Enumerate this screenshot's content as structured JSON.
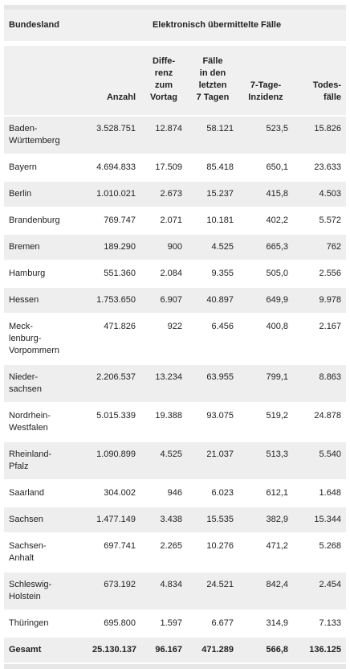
{
  "header": {
    "first_column": "Bundesland",
    "group": "Elektronisch übermittelte Fälle"
  },
  "columns": [
    "Anzahl",
    "Diffe-\nrenz\nzum\nVortag",
    "Fälle\nin den\nletzten\n7 Tagen",
    "7-Tage-\nInzidenz",
    "Todes-\nfälle"
  ],
  "rows": [
    [
      "Baden-\nWürttemberg",
      "3.528.751",
      "12.874",
      "58.121",
      "523,5",
      "15.826"
    ],
    [
      "Bayern",
      "4.694.833",
      "17.509",
      "85.418",
      "650,1",
      "23.633"
    ],
    [
      "Berlin",
      "1.010.021",
      "2.673",
      "15.237",
      "415,8",
      "4.503"
    ],
    [
      "Brandenburg",
      "769.747",
      "2.071",
      "10.181",
      "402,2",
      "5.572"
    ],
    [
      "Bremen",
      "189.290",
      "900",
      "4.525",
      "665,3",
      "762"
    ],
    [
      "Hamburg",
      "551.360",
      "2.084",
      "9.355",
      "505,0",
      "2.556"
    ],
    [
      "Hessen",
      "1.753.650",
      "6.907",
      "40.897",
      "649,9",
      "9.978"
    ],
    [
      "Meck-\nlenburg-\nVorpommern",
      "471.826",
      "922",
      "6.456",
      "400,8",
      "2.167"
    ],
    [
      "Nieder-\nsachsen",
      "2.206.537",
      "13.234",
      "63.955",
      "799,1",
      "8.863"
    ],
    [
      "Nordrhein-\nWestfalen",
      "5.015.339",
      "19.388",
      "93.075",
      "519,2",
      "24.878"
    ],
    [
      "Rheinland-\nPfalz",
      "1.090.899",
      "4.525",
      "21.037",
      "513,3",
      "5.540"
    ],
    [
      "Saarland",
      "304.002",
      "946",
      "6.023",
      "612,1",
      "1.648"
    ],
    [
      "Sachsen",
      "1.477.149",
      "3.438",
      "15.535",
      "382,9",
      "15.344"
    ],
    [
      "Sachsen-\nAnhalt",
      "697.741",
      "2.265",
      "10.276",
      "471,2",
      "5.268"
    ],
    [
      "Schleswig-\nHolstein",
      "673.192",
      "4.834",
      "24.521",
      "842,4",
      "2.454"
    ],
    [
      "Thüringen",
      "695.800",
      "1.597",
      "6.677",
      "314,9",
      "7.133"
    ]
  ],
  "total": [
    "Gesamt",
    "25.130.137",
    "96.167",
    "471.289",
    "566,8",
    "136.125"
  ]
}
